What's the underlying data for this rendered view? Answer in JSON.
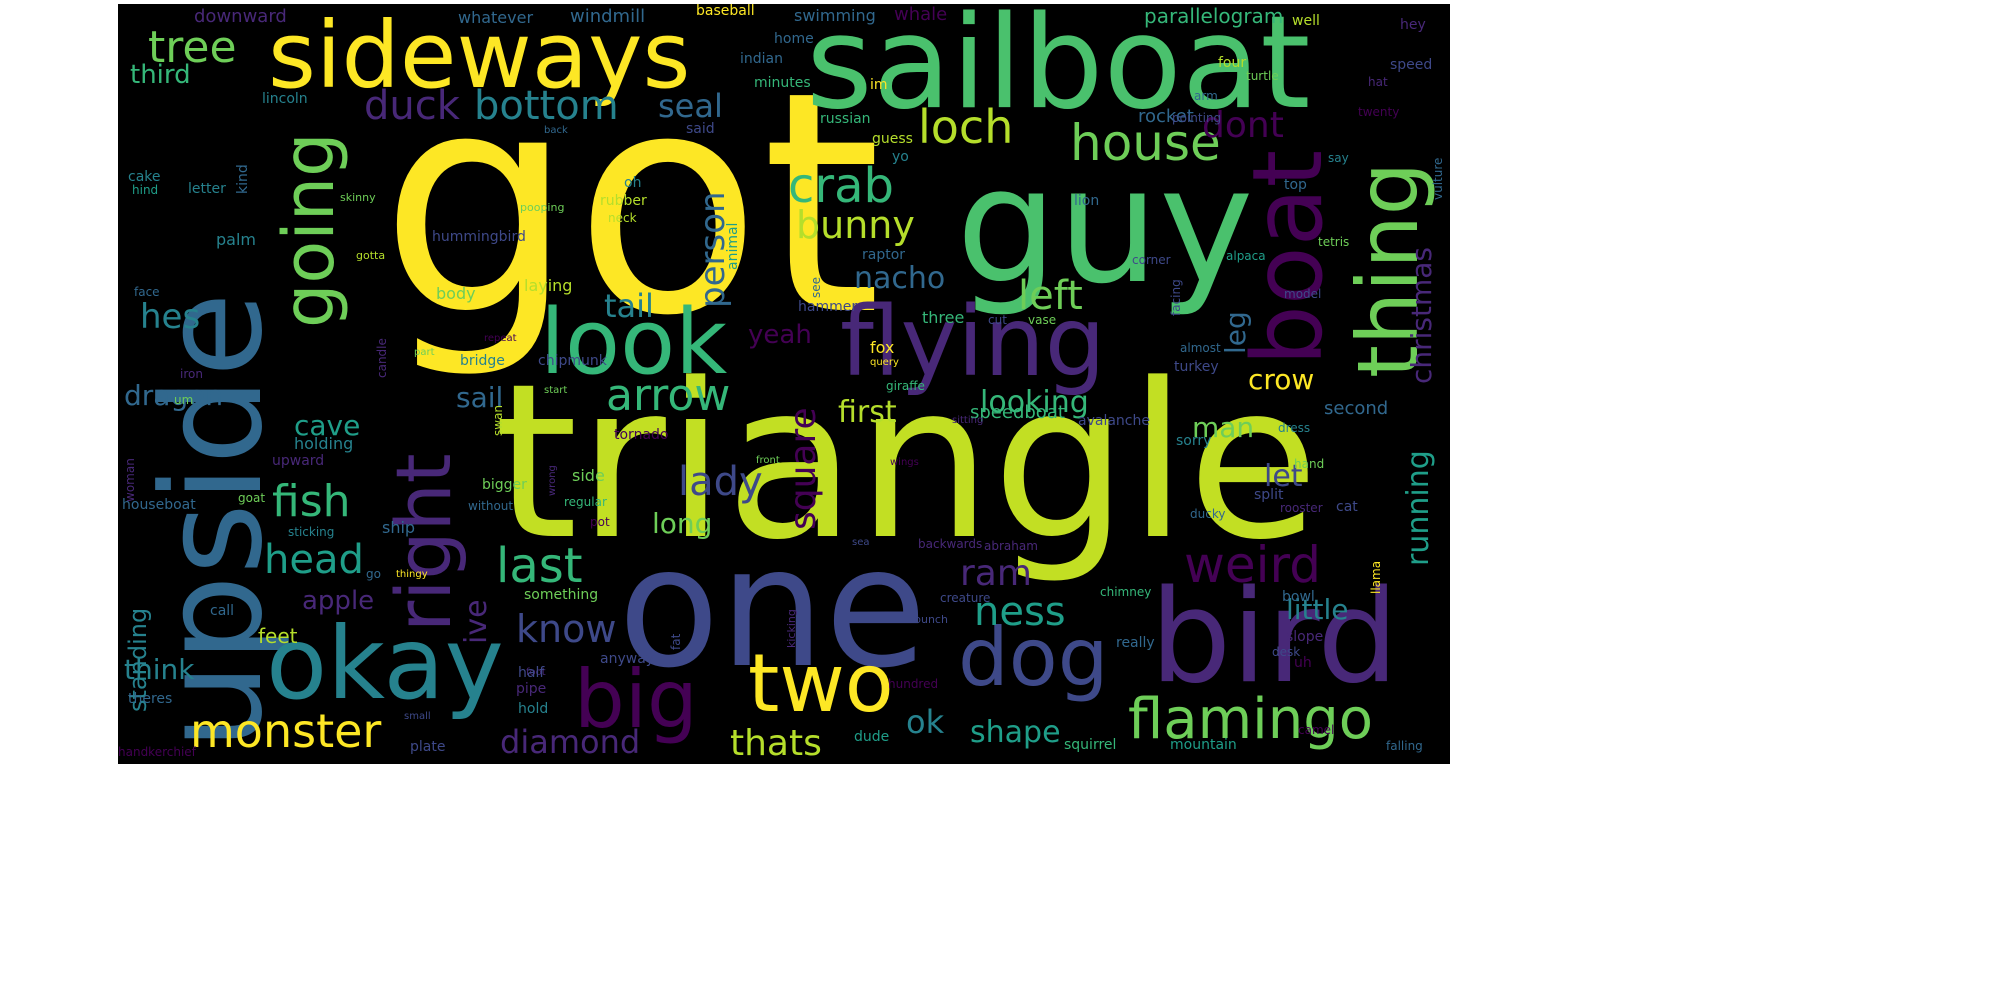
{
  "background": "#000000",
  "palette": [
    "#440154",
    "#482878",
    "#3e4989",
    "#31688e",
    "#26828e",
    "#1f9e89",
    "#35b779",
    "#6ece58",
    "#b5de2b",
    "#fde725"
  ],
  "words": [
    {
      "text": "got",
      "color": "#fde725"
    },
    {
      "text": "triangle",
      "color": "#c2df23"
    },
    {
      "text": "one",
      "color": "#3e4989"
    },
    {
      "text": "sailboat",
      "color": "#4ac16d"
    },
    {
      "text": "guy",
      "color": "#4ac16d"
    },
    {
      "text": "upside",
      "color": "#31688e"
    },
    {
      "text": "bird",
      "color": "#482878"
    },
    {
      "text": "sideways",
      "color": "#fde725"
    },
    {
      "text": "flying",
      "color": "#482878"
    },
    {
      "text": "look",
      "color": "#35b779"
    },
    {
      "text": "okay",
      "color": "#26828e"
    },
    {
      "text": "boat",
      "color": "#440154"
    },
    {
      "text": "thing",
      "color": "#6ece58"
    },
    {
      "text": "going",
      "color": "#6ece58"
    },
    {
      "text": "right",
      "color": "#482878"
    },
    {
      "text": "two",
      "color": "#fde725"
    },
    {
      "text": "big",
      "color": "#440154"
    },
    {
      "text": "dog",
      "color": "#3e4989"
    },
    {
      "text": "flamingo",
      "color": "#6ece58"
    },
    {
      "text": "monster",
      "color": "#fde725"
    },
    {
      "text": "house",
      "color": "#6ece58"
    },
    {
      "text": "crab",
      "color": "#35b779"
    },
    {
      "text": "loch",
      "color": "#b5de2b"
    },
    {
      "text": "arrow",
      "color": "#35b779"
    },
    {
      "text": "last",
      "color": "#35b779"
    },
    {
      "text": "weird",
      "color": "#440154"
    },
    {
      "text": "bottom",
      "color": "#26828e"
    },
    {
      "text": "tree",
      "color": "#6ece58"
    },
    {
      "text": "duck",
      "color": "#482878"
    },
    {
      "text": "bunny",
      "color": "#b5de2b"
    },
    {
      "text": "fish",
      "color": "#35b779"
    },
    {
      "text": "head",
      "color": "#1f9e89"
    },
    {
      "text": "square",
      "color": "#440154"
    },
    {
      "text": "lady",
      "color": "#3e4989"
    },
    {
      "text": "left",
      "color": "#6ece58"
    },
    {
      "text": "person",
      "color": "#31688e"
    },
    {
      "text": "know",
      "color": "#3e4989"
    },
    {
      "text": "ness",
      "color": "#1f9e89"
    },
    {
      "text": "ram",
      "color": "#482878"
    },
    {
      "text": "dont",
      "color": "#440154"
    },
    {
      "text": "nacho",
      "color": "#31688e"
    },
    {
      "text": "diamond",
      "color": "#482878"
    },
    {
      "text": "thats",
      "color": "#b5de2b"
    },
    {
      "text": "shape",
      "color": "#1f9e89"
    },
    {
      "text": "looking",
      "color": "#35b779"
    },
    {
      "text": "running",
      "color": "#1f9e89"
    },
    {
      "text": "christmas",
      "color": "#482878"
    },
    {
      "text": "ive",
      "color": "#482878"
    },
    {
      "text": "hes",
      "color": "#26828e"
    },
    {
      "text": "tail",
      "color": "#26828e"
    },
    {
      "text": "seal",
      "color": "#31688e"
    },
    {
      "text": "crow",
      "color": "#fde725"
    },
    {
      "text": "first",
      "color": "#b5de2b"
    },
    {
      "text": "man",
      "color": "#6ece58"
    },
    {
      "text": "leg",
      "color": "#31688e"
    },
    {
      "text": "dragon",
      "color": "#31688e"
    },
    {
      "text": "cave",
      "color": "#1f9e89"
    },
    {
      "text": "sail",
      "color": "#31688e"
    },
    {
      "text": "little",
      "color": "#26828e"
    },
    {
      "text": "long",
      "color": "#6ece58"
    },
    {
      "text": "think",
      "color": "#26828e"
    },
    {
      "text": "apple",
      "color": "#482878"
    },
    {
      "text": "ok",
      "color": "#26828e"
    },
    {
      "text": "let",
      "color": "#3e4989"
    },
    {
      "text": "yeah",
      "color": "#440154"
    },
    {
      "text": "third",
      "color": "#35b779"
    },
    {
      "text": "standing",
      "color": "#26828e"
    },
    {
      "text": "feet",
      "color": "#b5de2b"
    },
    {
      "text": "second",
      "color": "#31688e"
    },
    {
      "text": "parallelogram",
      "color": "#35b779"
    },
    {
      "text": "rocket",
      "color": "#31688e"
    },
    {
      "text": "speedboat",
      "color": "#35b779"
    },
    {
      "text": "downward",
      "color": "#482878"
    },
    {
      "text": "whatever",
      "color": "#31688e"
    },
    {
      "text": "windmill",
      "color": "#31688e"
    },
    {
      "text": "baseball",
      "color": "#fde725"
    },
    {
      "text": "swimming",
      "color": "#31688e"
    },
    {
      "text": "whale",
      "color": "#440154"
    },
    {
      "text": "well",
      "color": "#b5de2b"
    },
    {
      "text": "hey",
      "color": "#482878"
    },
    {
      "text": "home",
      "color": "#31688e"
    },
    {
      "text": "indian",
      "color": "#31688e"
    },
    {
      "text": "minutes",
      "color": "#35b779"
    },
    {
      "text": "im",
      "color": "#fde725"
    },
    {
      "text": "four",
      "color": "#b5de2b"
    },
    {
      "text": "turtle",
      "color": "#6ece58"
    },
    {
      "text": "arm",
      "color": "#31688e"
    },
    {
      "text": "hat",
      "color": "#482878"
    },
    {
      "text": "speed",
      "color": "#3e4989"
    },
    {
      "text": "lincoln",
      "color": "#26828e"
    },
    {
      "text": "russian",
      "color": "#35b779"
    },
    {
      "text": "pointing",
      "color": "#3e4989"
    },
    {
      "text": "twenty",
      "color": "#440154"
    },
    {
      "text": "back",
      "color": "#31688e"
    },
    {
      "text": "said",
      "color": "#3e4989"
    },
    {
      "text": "guess",
      "color": "#b5de2b"
    },
    {
      "text": "yo",
      "color": "#26828e"
    },
    {
      "text": "say",
      "color": "#26828e"
    },
    {
      "text": "top",
      "color": "#31688e"
    },
    {
      "text": "kind",
      "color": "#31688e"
    },
    {
      "text": "cake",
      "color": "#26828e"
    },
    {
      "text": "hind",
      "color": "#1f9e89"
    },
    {
      "text": "letter",
      "color": "#26828e"
    },
    {
      "text": "oh",
      "color": "#26828e"
    },
    {
      "text": "rubber",
      "color": "#b5de2b"
    },
    {
      "text": "neck",
      "color": "#b5de2b"
    },
    {
      "text": "pooping",
      "color": "#6ece58"
    },
    {
      "text": "skinny",
      "color": "#6ece58"
    },
    {
      "text": "hummingbird",
      "color": "#3e4989"
    },
    {
      "text": "animal",
      "color": "#1f9e89"
    },
    {
      "text": "lion",
      "color": "#31688e"
    },
    {
      "text": "vulture",
      "color": "#31688e"
    },
    {
      "text": "tetris",
      "color": "#6ece58"
    },
    {
      "text": "gotta",
      "color": "#b5de2b"
    },
    {
      "text": "palm",
      "color": "#26828e"
    },
    {
      "text": "raptor",
      "color": "#31688e"
    },
    {
      "text": "corner",
      "color": "#3e4989"
    },
    {
      "text": "alpaca",
      "color": "#1f9e89"
    },
    {
      "text": "face",
      "color": "#31688e"
    },
    {
      "text": "body",
      "color": "#6ece58"
    },
    {
      "text": "laying",
      "color": "#b5de2b"
    },
    {
      "text": "hammer",
      "color": "#3e4989"
    },
    {
      "text": "see",
      "color": "#31688e"
    },
    {
      "text": "facing",
      "color": "#3e4989"
    },
    {
      "text": "model",
      "color": "#3e4989"
    },
    {
      "text": "candle",
      "color": "#482878"
    },
    {
      "text": "three",
      "color": "#35b779"
    },
    {
      "text": "cut",
      "color": "#3e4989"
    },
    {
      "text": "vase",
      "color": "#6ece58"
    },
    {
      "text": "repeat",
      "color": "#440154"
    },
    {
      "text": "part",
      "color": "#6ece58"
    },
    {
      "text": "fox",
      "color": "#fde725"
    },
    {
      "text": "query",
      "color": "#fde725"
    },
    {
      "text": "almost",
      "color": "#31688e"
    },
    {
      "text": "iron",
      "color": "#482878"
    },
    {
      "text": "bridge",
      "color": "#26828e"
    },
    {
      "text": "chipmunk",
      "color": "#3e4989"
    },
    {
      "text": "giraffe",
      "color": "#35b779"
    },
    {
      "text": "turkey",
      "color": "#3e4989"
    },
    {
      "text": "um",
      "color": "#6ece58"
    },
    {
      "text": "start",
      "color": "#6ece58"
    },
    {
      "text": "swan",
      "color": "#b5de2b"
    },
    {
      "text": "tornado",
      "color": "#440154"
    },
    {
      "text": "sitting",
      "color": "#482878"
    },
    {
      "text": "avalanche",
      "color": "#3e4989"
    },
    {
      "text": "dress",
      "color": "#26828e"
    },
    {
      "text": "holding",
      "color": "#26828e"
    },
    {
      "text": "woman",
      "color": "#482878"
    },
    {
      "text": "sorry",
      "color": "#26828e"
    },
    {
      "text": "upward",
      "color": "#482878"
    },
    {
      "text": "side",
      "color": "#6ece58"
    },
    {
      "text": "wings",
      "color": "#440154"
    },
    {
      "text": "hand",
      "color": "#6ece58"
    },
    {
      "text": "front",
      "color": "#6ece58"
    },
    {
      "text": "bigger",
      "color": "#6ece58"
    },
    {
      "text": "wrong",
      "color": "#482878"
    },
    {
      "text": "regular",
      "color": "#35b779"
    },
    {
      "text": "goat",
      "color": "#6ece58"
    },
    {
      "text": "houseboat",
      "color": "#31688e"
    },
    {
      "text": "without",
      "color": "#31688e"
    },
    {
      "text": "cat",
      "color": "#3e4989"
    },
    {
      "text": "split",
      "color": "#3e4989"
    },
    {
      "text": "ducky",
      "color": "#31688e"
    },
    {
      "text": "rooster",
      "color": "#482878"
    },
    {
      "text": "pot",
      "color": "#440154"
    },
    {
      "text": "sticking",
      "color": "#26828e"
    },
    {
      "text": "ship",
      "color": "#31688e"
    },
    {
      "text": "sea",
      "color": "#3e4989"
    },
    {
      "text": "backwards",
      "color": "#482878"
    },
    {
      "text": "abraham",
      "color": "#482878"
    },
    {
      "text": "go",
      "color": "#31688e"
    },
    {
      "text": "thingy",
      "color": "#fde725"
    },
    {
      "text": "something",
      "color": "#6ece58"
    },
    {
      "text": "chimney",
      "color": "#35b779"
    },
    {
      "text": "llama",
      "color": "#fde725"
    },
    {
      "text": "call",
      "color": "#31688e"
    },
    {
      "text": "creature",
      "color": "#3e4989"
    },
    {
      "text": "bowl",
      "color": "#31688e"
    },
    {
      "text": "bunch",
      "color": "#3e4989"
    },
    {
      "text": "kicking",
      "color": "#482878"
    },
    {
      "text": "fat",
      "color": "#3e4989"
    },
    {
      "text": "really",
      "color": "#31688e"
    },
    {
      "text": "slope",
      "color": "#482878"
    },
    {
      "text": "desk",
      "color": "#3e4989"
    },
    {
      "text": "foot",
      "color": "#482878"
    },
    {
      "text": "anyway",
      "color": "#3e4989"
    },
    {
      "text": "half",
      "color": "#3e4989"
    },
    {
      "text": "uh",
      "color": "#440154"
    },
    {
      "text": "hundred",
      "color": "#440154"
    },
    {
      "text": "pipe",
      "color": "#482878"
    },
    {
      "text": "theres",
      "color": "#31688e"
    },
    {
      "text": "hold",
      "color": "#26828e"
    },
    {
      "text": "small",
      "color": "#3e4989"
    },
    {
      "text": "plate",
      "color": "#3e4989"
    },
    {
      "text": "dude",
      "color": "#1f9e89"
    },
    {
      "text": "squirrel",
      "color": "#35b779"
    },
    {
      "text": "mountain",
      "color": "#1f9e89"
    },
    {
      "text": "camel",
      "color": "#440154"
    },
    {
      "text": "falling",
      "color": "#31688e"
    },
    {
      "text": "handkerchief",
      "color": "#440154"
    }
  ]
}
